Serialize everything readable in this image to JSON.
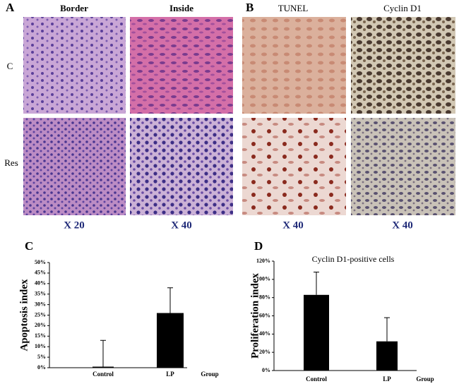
{
  "figure": {
    "panel_a": {
      "label": "A",
      "columns": [
        "Border",
        "Inside"
      ],
      "rows": [
        "C",
        "Res"
      ],
      "magnifications": [
        "X 20",
        "X 40"
      ]
    },
    "panel_b": {
      "label": "B",
      "columns": [
        "TUNEL",
        "Cyclin D1"
      ],
      "magnifications": [
        "X 40",
        "X 40"
      ]
    }
  },
  "chart_data": [
    {
      "type": "bar",
      "panel_label": "C",
      "y_label": "Apoptosis index",
      "x_label": "Group",
      "categories": [
        "Control",
        "LP"
      ],
      "values": [
        0.5,
        26
      ],
      "errors": [
        12.5,
        12
      ],
      "color": "#000000",
      "ylim": [
        0,
        50
      ],
      "yticks": [
        {
          "value": 0,
          "label": "0%"
        },
        {
          "value": 5,
          "label": "5%"
        },
        {
          "value": 10,
          "label": "10%"
        },
        {
          "value": 15,
          "label": "15%"
        },
        {
          "value": 20,
          "label": "20%"
        },
        {
          "value": 25,
          "label": "25%"
        },
        {
          "value": 30,
          "label": "30%"
        },
        {
          "value": 35,
          "label": "35%"
        },
        {
          "value": 40,
          "label": "40%"
        },
        {
          "value": 45,
          "label": "45%"
        },
        {
          "value": 50,
          "label": "50%"
        }
      ]
    },
    {
      "type": "bar",
      "panel_label": "D",
      "title": "Cyclin D1-positive cells",
      "y_label": "Proliferation index",
      "x_label": "Group",
      "categories": [
        "Control",
        "LP"
      ],
      "values": [
        83,
        32
      ],
      "errors": [
        25,
        26
      ],
      "color": "#000000",
      "ylim": [
        0,
        120
      ],
      "yticks": [
        {
          "value": 0,
          "label": "0%"
        },
        {
          "value": 20,
          "label": "20%"
        },
        {
          "value": 40,
          "label": "40%"
        },
        {
          "value": 60,
          "label": "60%"
        },
        {
          "value": 80,
          "label": "80%"
        },
        {
          "value": 100,
          "label": "100%"
        },
        {
          "value": 120,
          "label": "120%"
        }
      ]
    }
  ]
}
